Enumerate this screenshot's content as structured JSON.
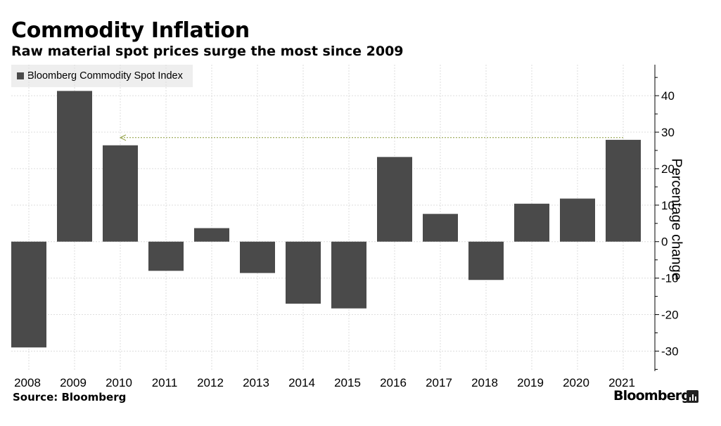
{
  "header": {
    "title": "Commodity Inflation",
    "subtitle": "Raw material spot prices surge the most since 2009"
  },
  "footer": {
    "source": "Source: Bloomberg",
    "brand": "Bloomberg"
  },
  "colors": {
    "bar": "#4a4a4a",
    "grid": "#dddddd",
    "annotation": "#8a9a3a",
    "legend_bg": "#eeeeee"
  },
  "chart_data": {
    "type": "bar",
    "title": "Commodity Inflation",
    "subtitle": "Raw material spot prices surge the most since 2009",
    "categories": [
      "2008",
      "2009",
      "2010",
      "2011",
      "2012",
      "2013",
      "2014",
      "2015",
      "2016",
      "2017",
      "2018",
      "2019",
      "2020",
      "2021"
    ],
    "series": [
      {
        "name": "Bloomberg Commodity Spot Index",
        "values": [
          -29.0,
          41.3,
          26.4,
          -8.0,
          3.7,
          -8.6,
          -17.0,
          -18.3,
          23.2,
          7.6,
          -10.5,
          10.4,
          11.8,
          27.9
        ]
      }
    ],
    "xlabel": "",
    "ylabel": "Percentage change",
    "ylim": [
      -35.5,
      48.5
    ],
    "yticks": [
      -30,
      -20,
      -10,
      0,
      10,
      20,
      30,
      40
    ],
    "ytick_labels": [
      "-30",
      "-20",
      "-10",
      "0",
      "10",
      "20",
      "30",
      "40"
    ],
    "grid": true,
    "legend_position": "top-left",
    "annotation": {
      "type": "arrow",
      "from_category": "2021",
      "to_category": "2010",
      "y_value": 28.5
    }
  }
}
